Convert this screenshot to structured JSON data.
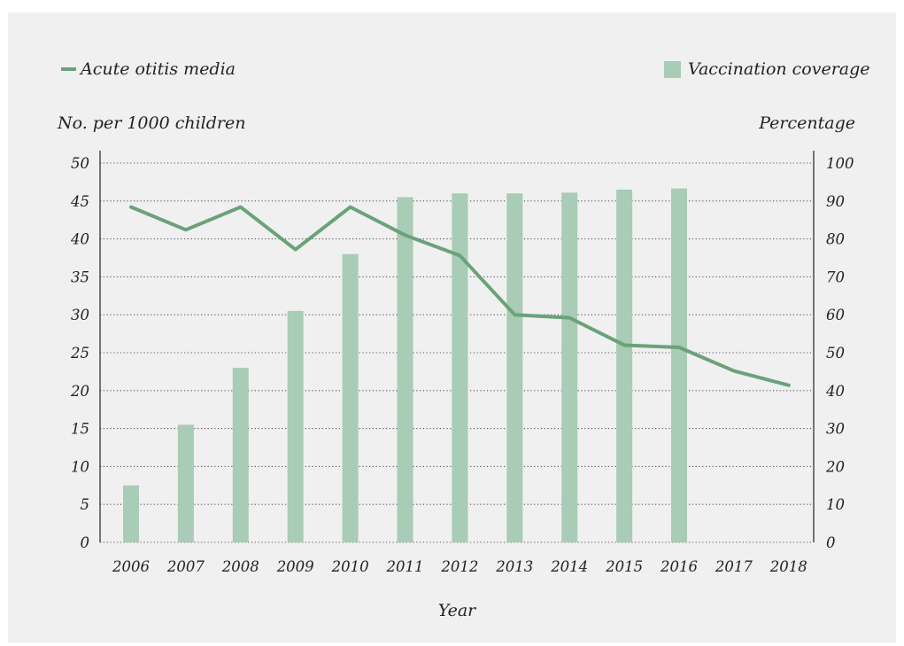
{
  "chart_data": {
    "type": "bar+line",
    "categories": [
      "2006",
      "2007",
      "2008",
      "2009",
      "2010",
      "2011",
      "2012",
      "2013",
      "2014",
      "2015",
      "2016",
      "2017",
      "2018"
    ],
    "series": [
      {
        "name": "Vaccination coverage",
        "type": "bar",
        "axis": "right",
        "color": "#a8ccb5",
        "values": [
          15,
          31,
          46,
          61,
          76,
          91,
          92,
          92,
          92.2,
          93,
          93.3,
          null,
          null
        ]
      },
      {
        "name": "Acute otitis media",
        "type": "line",
        "axis": "left",
        "color": "#6aa27a",
        "values": [
          44.2,
          41.2,
          44.2,
          38.6,
          44.2,
          40.5,
          37.8,
          30,
          29.6,
          26,
          25.7,
          22.6,
          20.7
        ]
      }
    ],
    "y_left": {
      "label": "No. per 1000 children",
      "ticks": [
        "0",
        "5",
        "10",
        "15",
        "20",
        "25",
        "30",
        "35",
        "40",
        "45",
        "50"
      ],
      "ylim": [
        0,
        50
      ]
    },
    "y_right": {
      "label": "Percentage",
      "ticks": [
        "0",
        "10",
        "20",
        "30",
        "40",
        "50",
        "60",
        "70",
        "80",
        "90",
        "100"
      ],
      "ylim": [
        0,
        100
      ]
    },
    "xlabel": "Year",
    "grid": "horizontal dotted",
    "legend": {
      "left_entry": "Acute otitis media",
      "right_entry": "Vaccination coverage",
      "placement": "top"
    }
  }
}
